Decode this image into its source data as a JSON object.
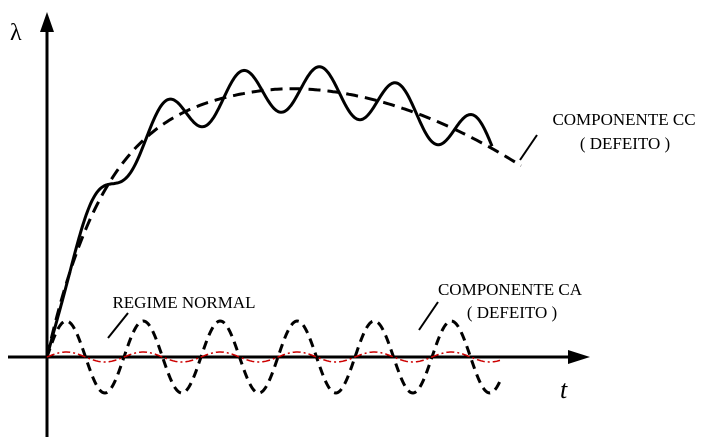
{
  "axes": {
    "y_symbol": "λ",
    "x_symbol": "t"
  },
  "labels": {
    "dc_component_line1": "COMPONENTE CC",
    "dc_component_line2": "( DEFEITO )",
    "ac_component_line1": "COMPONENTE CA",
    "ac_component_line2": "( DEFEITO )",
    "normal_regime": "REGIME NORMAL"
  },
  "curves": [
    {
      "id": "total-flux",
      "style": "solid",
      "color": "#000000"
    },
    {
      "id": "dc-component",
      "style": "dashed",
      "color": "#000000"
    },
    {
      "id": "ac-component",
      "style": "dashed",
      "color": "#000000"
    },
    {
      "id": "normal-regime",
      "style": "dash-dot",
      "color": "#cc0000"
    }
  ]
}
